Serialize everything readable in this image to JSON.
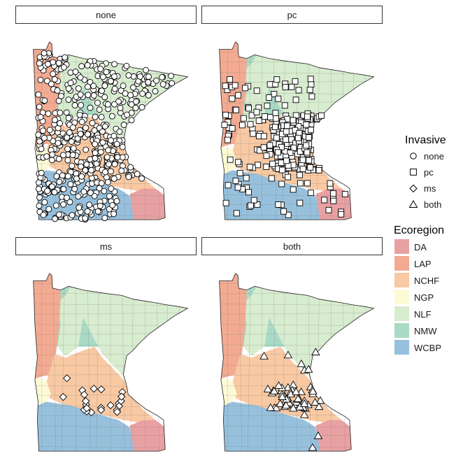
{
  "chart_data": {
    "type": "scatter",
    "subtype": "faceted map of sample sites over Minnesota ecoregions",
    "facets": [
      {
        "label": "none",
        "shape": "circle",
        "n_points": 520
      },
      {
        "label": "pc",
        "shape": "square",
        "n_points": 300
      },
      {
        "label": "ms",
        "shape": "diamond",
        "n_points": 22
      },
      {
        "label": "both",
        "shape": "triangle",
        "n_points": 55
      }
    ],
    "legend_shape": {
      "title": "Invasive",
      "entries": [
        {
          "label": "none",
          "shape": "circle"
        },
        {
          "label": "pc",
          "shape": "square"
        },
        {
          "label": "ms",
          "shape": "diamond"
        },
        {
          "label": "both",
          "shape": "triangle"
        }
      ]
    },
    "legend_fill": {
      "title": "Ecoregion",
      "entries": [
        {
          "label": "DA",
          "color": "#e8a1a3"
        },
        {
          "label": "LAP",
          "color": "#f2ab92"
        },
        {
          "label": "NCHF",
          "color": "#f8c9a3"
        },
        {
          "label": "NGP",
          "color": "#fdfbd6"
        },
        {
          "label": "NLF",
          "color": "#d8eccf"
        },
        {
          "label": "NMW",
          "color": "#a9dac6"
        },
        {
          "label": "WCBP",
          "color": "#97c0dc"
        }
      ]
    }
  }
}
